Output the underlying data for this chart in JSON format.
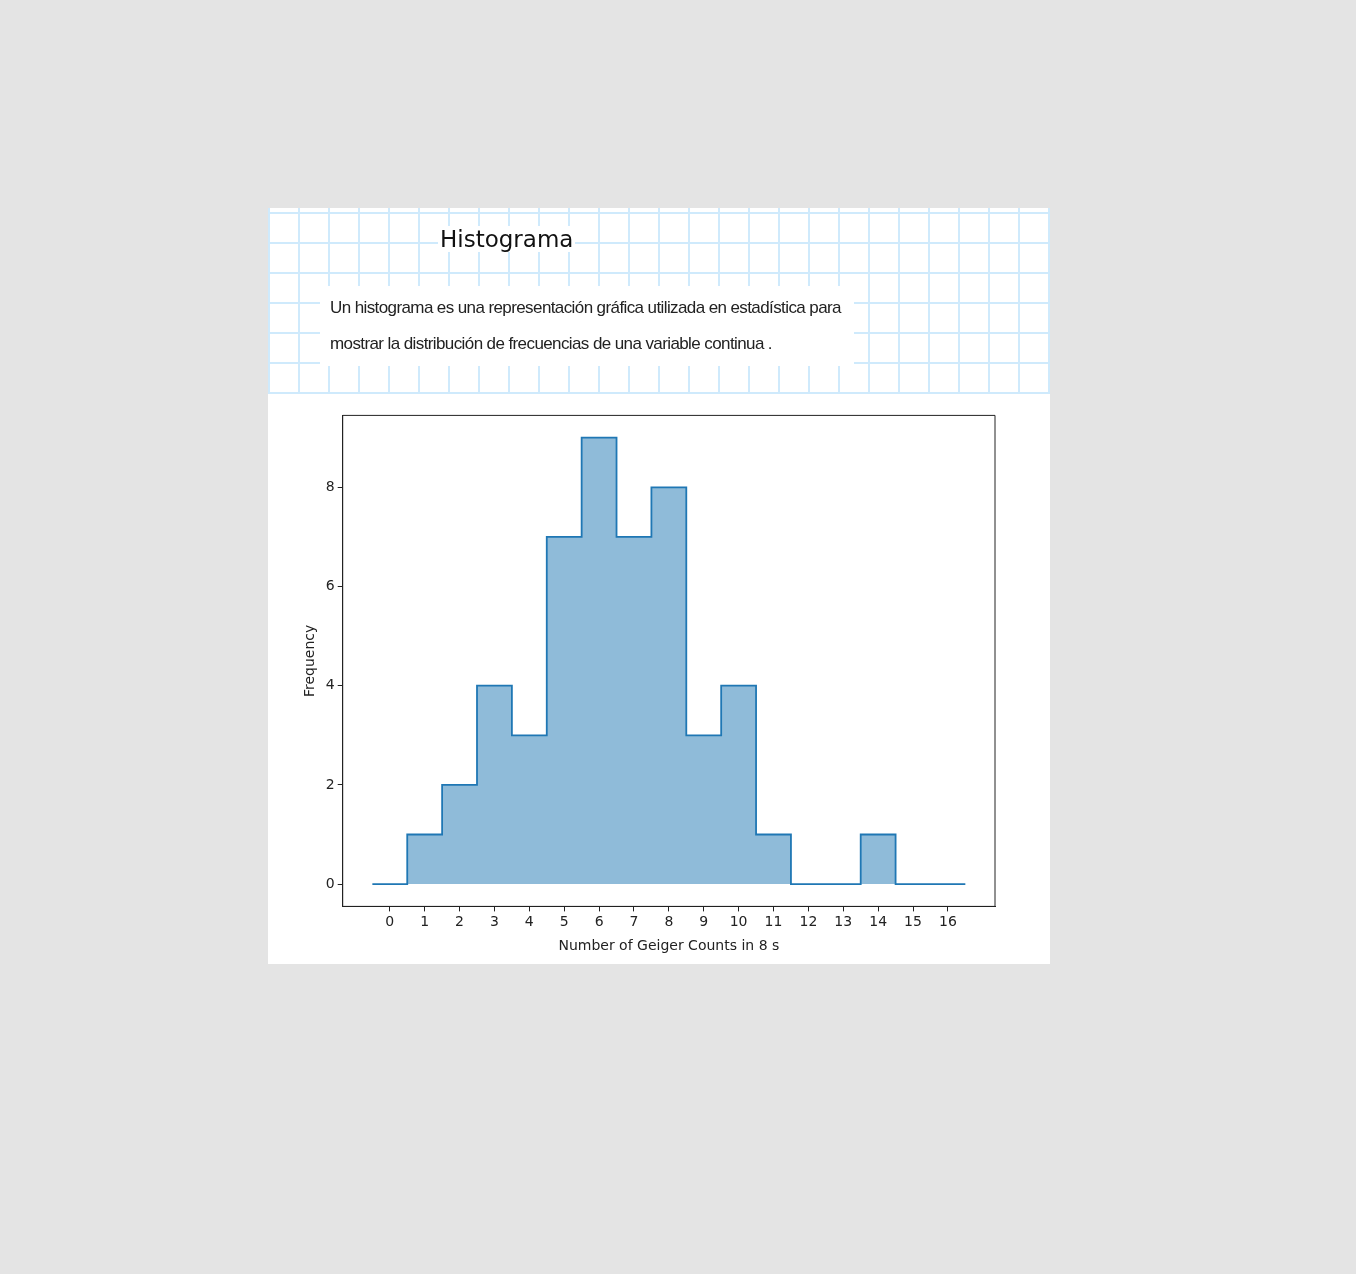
{
  "chart_data": {
    "type": "histogram",
    "title": "Histograma",
    "subtitle": "Un histograma es una representación gráfica utilizada en estadística para mostrar la distribución de frecuencias de una variable continua .",
    "xlabel": "Number of Geiger Counts in 8 s",
    "ylabel": "Frequency",
    "bins": [
      -0.5,
      0.5,
      1.5,
      2.5,
      3.5,
      4.5,
      5.5,
      6.5,
      7.5,
      8.5,
      9.5,
      10.5,
      11.5,
      12.5,
      13.5,
      14.5,
      15.5,
      16.5
    ],
    "values": [
      0,
      1,
      2,
      4,
      3,
      7,
      9,
      7,
      8,
      3,
      4,
      1,
      0,
      0,
      1,
      0,
      0
    ],
    "color": "#1f77b4",
    "xlim": [
      -1.35,
      17.35
    ],
    "xticks": [
      0,
      1,
      2,
      3,
      4,
      5,
      6,
      7,
      8,
      9,
      10,
      11,
      12,
      13,
      14,
      15,
      16
    ],
    "ylim": [
      -0.45,
      9.45
    ],
    "yticks": [
      0,
      2,
      4,
      6,
      8
    ],
    "grid": false,
    "legend": false
  }
}
